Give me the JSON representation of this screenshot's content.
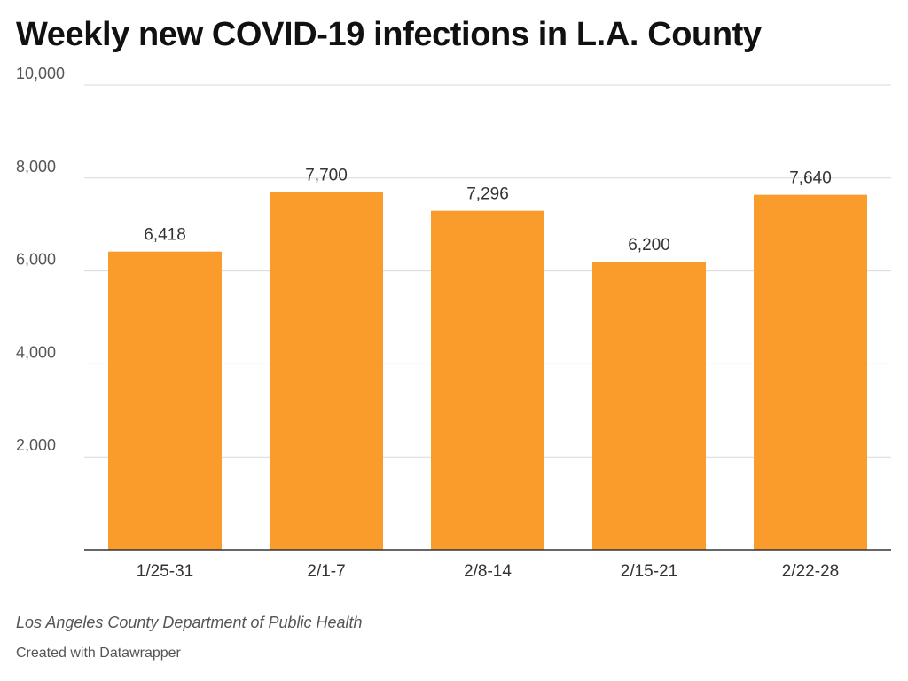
{
  "chart_data": {
    "type": "bar",
    "title": "Weekly new COVID-19 infections in L.A. County",
    "categories": [
      "1/25-31",
      "2/1-7",
      "2/8-14",
      "2/15-21",
      "2/22-28"
    ],
    "values": [
      6418,
      7700,
      7296,
      6200,
      7640
    ],
    "value_labels": [
      "6,418",
      "7,700",
      "7,296",
      "6,200",
      "7,640"
    ],
    "ylim": [
      0,
      10000
    ],
    "yticks": [
      2000,
      4000,
      6000,
      8000,
      10000
    ],
    "ytick_labels": [
      "2,000",
      "4,000",
      "6,000",
      "8,000",
      "10,000"
    ],
    "xlabel": "",
    "ylabel": "",
    "grid": true,
    "bar_color": "#fa9c2b"
  },
  "footer": {
    "source": "Los Angeles County Department of Public Health",
    "credit": "Created with Datawrapper"
  }
}
